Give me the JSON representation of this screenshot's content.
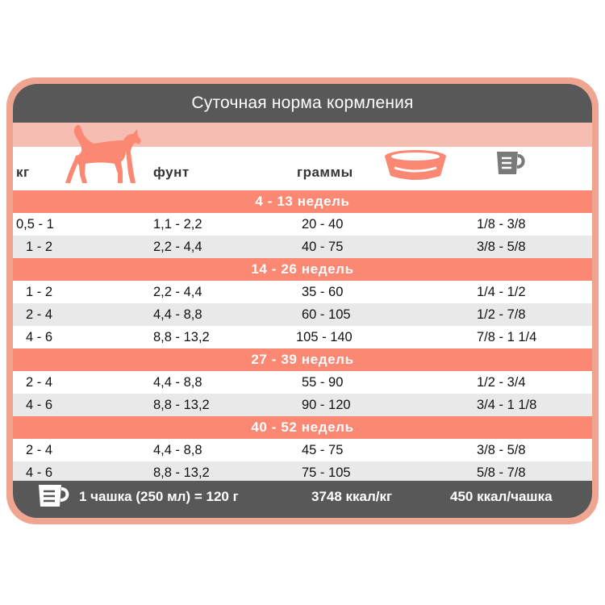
{
  "title": "Суточная норма кормления",
  "headers": {
    "kg": "кг",
    "lb": "фунт",
    "grams": "граммы"
  },
  "icons": {
    "cat": "cat-icon",
    "bowl": "bowl-icon",
    "cup": "measuring-cup-icon"
  },
  "colors": {
    "accent": "#fb8872",
    "frame": "#f0a591",
    "dark": "#585858",
    "light_pink": "#f6beb2",
    "alt_row": "#e9e9e9"
  },
  "sections": [
    {
      "label": "4 - 13 недель",
      "rows": [
        [
          "0,5 - 1",
          "1,1 - 2,2",
          "20 - 40",
          "1/8 - 3/8"
        ],
        [
          "1 - 2",
          "2,2 - 4,4",
          "40 - 75",
          "3/8 - 5/8"
        ]
      ]
    },
    {
      "label": "14 - 26 недель",
      "rows": [
        [
          "1 - 2",
          "2,2 - 4,4",
          "35 - 60",
          "1/4 - 1/2"
        ],
        [
          "2 - 4",
          "4,4 - 8,8",
          "60 - 105",
          "1/2 - 7/8"
        ],
        [
          "4 - 6",
          "8,8 - 13,2",
          "105 - 140",
          "7/8 - 1 1/4"
        ]
      ]
    },
    {
      "label": "27 - 39 недель",
      "rows": [
        [
          "2 - 4",
          "4,4 - 8,8",
          "55 - 90",
          "1/2 - 3/4"
        ],
        [
          "4 - 6",
          "8,8 - 13,2",
          "90 - 120",
          "3/4 - 1 1/8"
        ]
      ]
    },
    {
      "label": "40 - 52 недель",
      "rows": [
        [
          "2 - 4",
          "4,4 - 8,8",
          "45 - 75",
          "3/8 - 5/8"
        ],
        [
          "4 - 6",
          "8,8 - 13,2",
          "75 - 105",
          "5/8 - 7/8"
        ]
      ]
    }
  ],
  "footer": {
    "cup_note": "1 чашка (250 мл) = 120 г",
    "kcal_per_kg": "3748 ккал/кг",
    "kcal_per_cup": "450 ккал/чашка"
  }
}
